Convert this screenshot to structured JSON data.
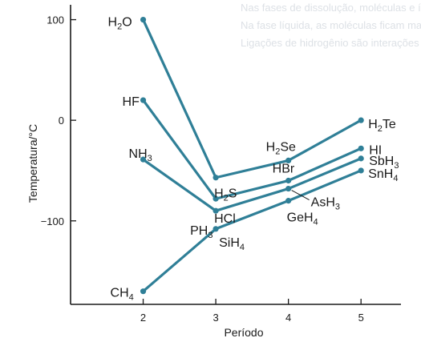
{
  "background_text": [
    "Nas fases de dissolução, moléculas e íons solvatados se formam",
    "Na fase líquida, as moléculas ficam mais próximas umas das outras",
    "Ligações de hidrogênio são interações especialmente fortes"
  ],
  "colors": {
    "line": "#2f7f97",
    "axis": "#1a1a1a",
    "page_bg": "#ffffff"
  },
  "chart_data": {
    "type": "line",
    "title": "",
    "xlabel": "Período",
    "ylabel": "Temperatura/°C",
    "xlim": [
      1.0,
      5.55
    ],
    "ylim": [
      -183,
      110
    ],
    "xticks": [
      2,
      3,
      4,
      5
    ],
    "yticks": [
      100,
      0,
      -100
    ],
    "ytick_labels": [
      "100",
      "0",
      "−100"
    ],
    "x": [
      2,
      3,
      4,
      5
    ],
    "series": [
      {
        "name": "group16",
        "values": [
          100,
          -57,
          -40,
          0
        ],
        "labels": [
          {
            "base": "H",
            "sub": "2",
            "rest": "O"
          },
          {
            "base": "H",
            "sub": "2",
            "rest": "S"
          },
          {
            "base": "H",
            "sub": "2",
            "rest": "Se"
          },
          {
            "base": "H",
            "sub": "2",
            "rest": "Te"
          }
        ]
      },
      {
        "name": "group17",
        "values": [
          20,
          -78,
          -60,
          -28
        ],
        "labels": [
          {
            "base": "HF",
            "sub": "",
            "rest": ""
          },
          {
            "base": "HCl",
            "sub": "",
            "rest": ""
          },
          {
            "base": "HBr",
            "sub": "",
            "rest": ""
          },
          {
            "base": "HI",
            "sub": "",
            "rest": ""
          }
        ]
      },
      {
        "name": "group15",
        "values": [
          -39,
          -90,
          -68,
          -38
        ],
        "labels": [
          {
            "base": "NH",
            "sub": "3",
            "rest": ""
          },
          {
            "base": "PH",
            "sub": "3",
            "rest": ""
          },
          {
            "base": "AsH",
            "sub": "3",
            "rest": ""
          },
          {
            "base": "SbH",
            "sub": "3",
            "rest": ""
          }
        ]
      },
      {
        "name": "group14",
        "values": [
          -170,
          -108,
          -80,
          -50
        ],
        "labels": [
          {
            "base": "CH",
            "sub": "4",
            "rest": ""
          },
          {
            "base": "SiH",
            "sub": "4",
            "rest": ""
          },
          {
            "base": "GeH",
            "sub": "4",
            "rest": ""
          },
          {
            "base": "SnH",
            "sub": "4",
            "rest": ""
          }
        ]
      }
    ]
  }
}
